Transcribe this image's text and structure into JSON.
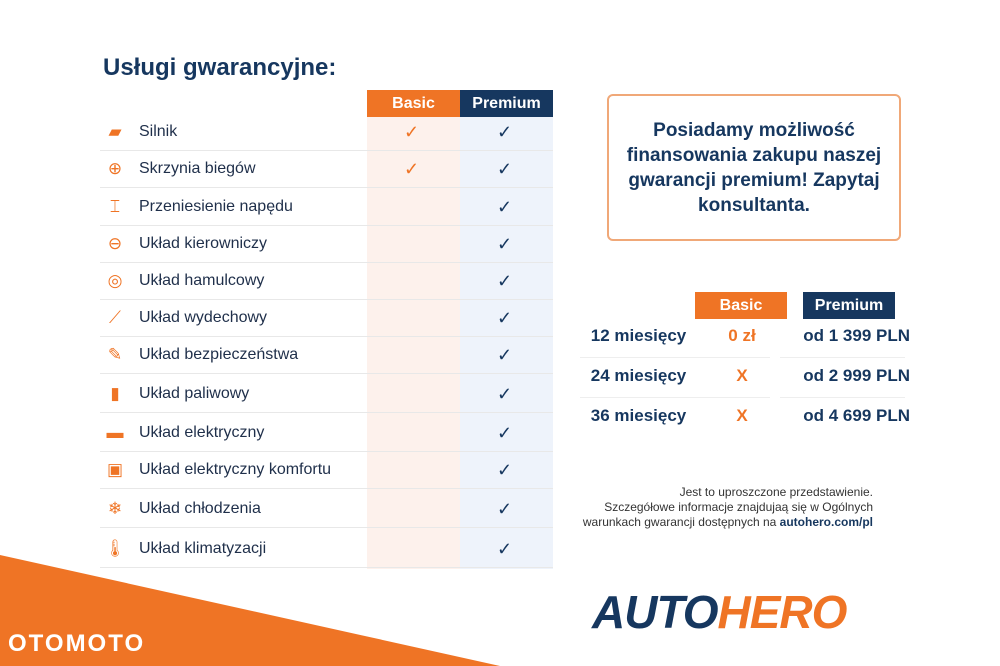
{
  "title": "Usługi gwarancyjne:",
  "table": {
    "basic_label": "Basic",
    "premium_label": "Premium",
    "rows": [
      {
        "icon": "engine-icon",
        "glyph": "▰",
        "label": "Silnik",
        "basic": "✓",
        "premium": "✓"
      },
      {
        "icon": "gearbox-icon",
        "glyph": "⊕",
        "label": "Skrzynia biegów",
        "basic": "✓",
        "premium": "✓"
      },
      {
        "icon": "drivetrain-icon",
        "glyph": "⌶",
        "label": "Przeniesienie napędu",
        "basic": "",
        "premium": "✓"
      },
      {
        "icon": "steering-wheel-icon",
        "glyph": "⊖",
        "label": "Układ kierowniczy",
        "basic": "",
        "premium": "✓"
      },
      {
        "icon": "brake-disc-icon",
        "glyph": "◎",
        "label": "Układ hamulcowy",
        "basic": "",
        "premium": "✓"
      },
      {
        "icon": "exhaust-icon",
        "glyph": "⟋",
        "label": "Układ wydechowy",
        "basic": "",
        "premium": "✓"
      },
      {
        "icon": "safety-icon",
        "glyph": "✎",
        "label": "Układ bezpieczeństwa",
        "basic": "",
        "premium": "✓"
      },
      {
        "icon": "fuel-icon",
        "glyph": "▮",
        "label": "Układ paliwowy",
        "basic": "",
        "premium": "✓"
      },
      {
        "icon": "battery-icon",
        "glyph": "▬",
        "label": "Układ elektryczny",
        "basic": "",
        "premium": "✓"
      },
      {
        "icon": "chip-icon",
        "glyph": "▣",
        "label": "Układ elektryczny komfortu",
        "basic": "",
        "premium": "✓"
      },
      {
        "icon": "snowflake-icon",
        "glyph": "❄",
        "label": "Układ chłodzenia",
        "basic": "",
        "premium": "✓"
      },
      {
        "icon": "thermometer-icon",
        "glyph": "🌡",
        "label": "Układ klimatyzacji",
        "basic": "",
        "premium": "✓"
      }
    ]
  },
  "promo": "Posiadamy możliwość finansowania zakupu naszej gwarancji premium! Zapytaj konsultanta.",
  "pricing": {
    "basic_label": "Basic",
    "premium_label": "Premium",
    "rows": [
      {
        "months": "12 miesięcy",
        "basic": "0 zł",
        "premium": "od 1 399 PLN"
      },
      {
        "months": "24 miesięcy",
        "basic": "X",
        "premium": "od 2 999 PLN"
      },
      {
        "months": "36 miesięcy",
        "basic": "X",
        "premium": "od 4 699 PLN"
      }
    ]
  },
  "note": {
    "line1": "Jest to uproszczone przedstawienie.",
    "line2": "Szczegółowe informacje znajdujaą się w Ogólnych",
    "line3": "warunkach gwarancji dostępnych na ",
    "link": "autohero.com/pl"
  },
  "logo": {
    "part1": "AUTO",
    "part2": "HERO"
  },
  "watermark": "OTOMOTO",
  "colors": {
    "orange": "#ef7425",
    "navy": "#16375f"
  }
}
